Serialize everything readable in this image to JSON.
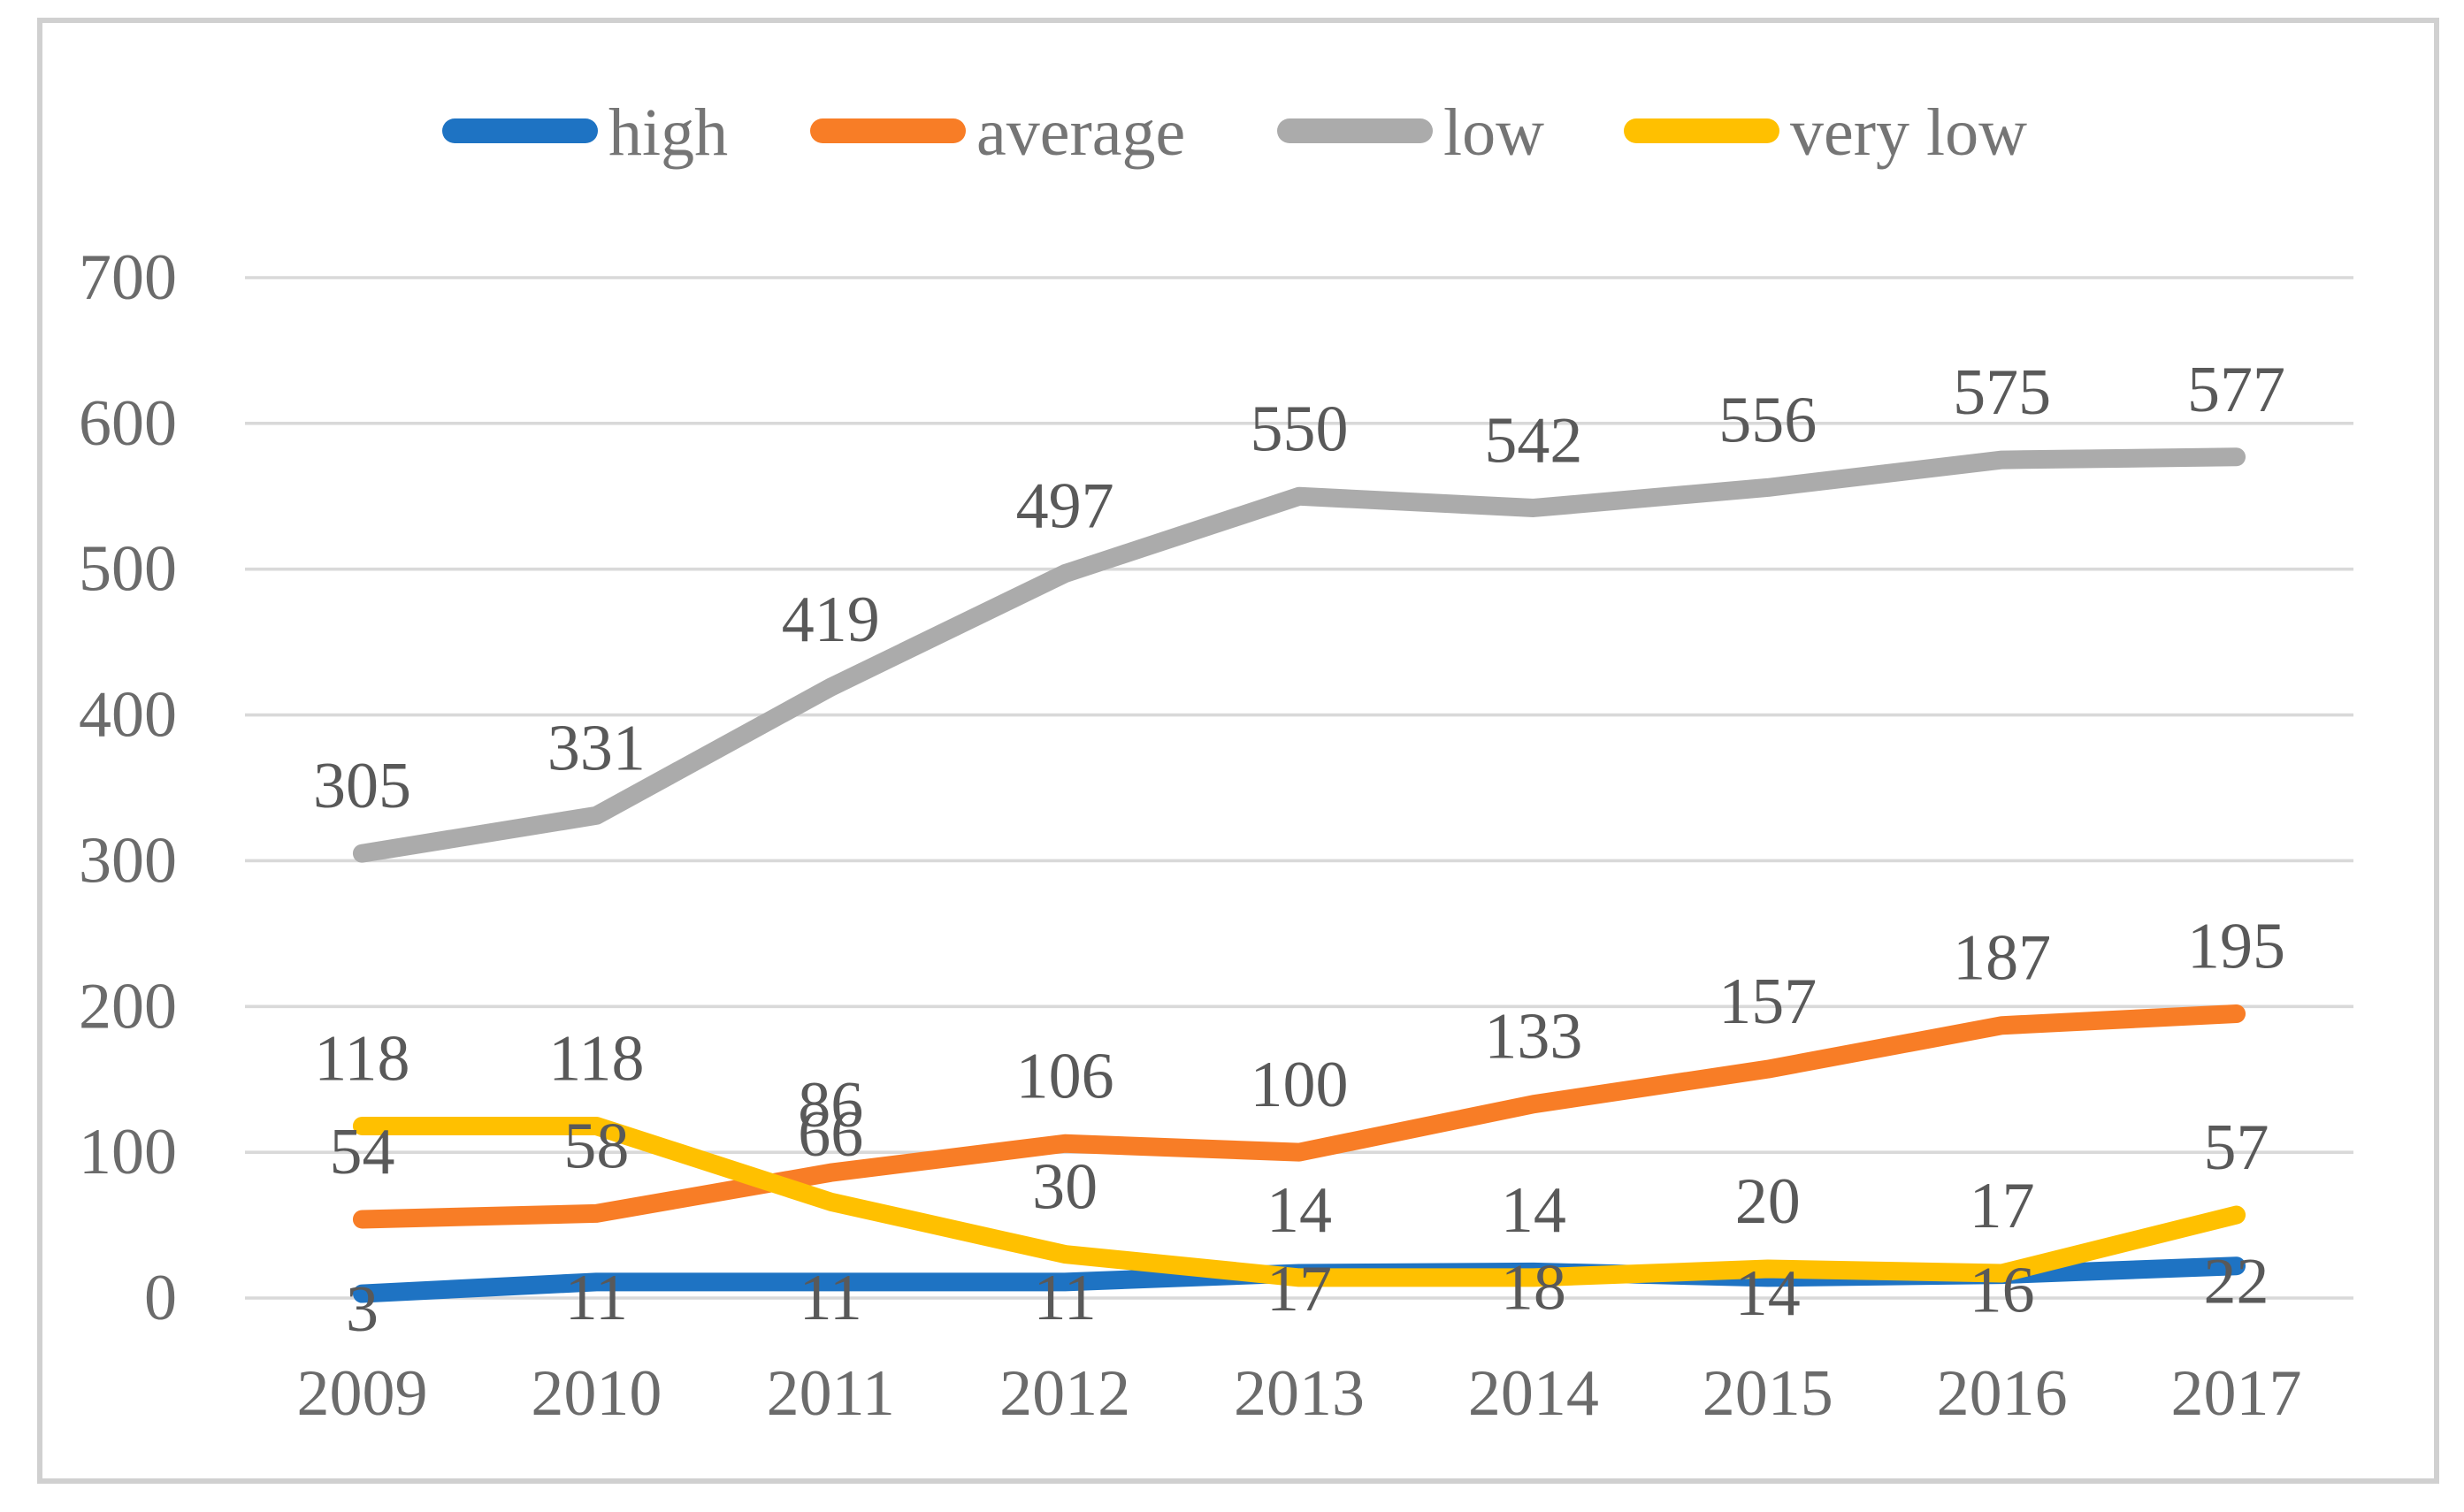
{
  "figure": {
    "background": "#FFFFFF",
    "border_color": "#D0D0D0",
    "gridline_color": "#D9D9D9",
    "axis_label_color": "#6B6B6B",
    "data_label_color": "#595959",
    "legend_label_color": "#757575"
  },
  "chart_data": {
    "type": "line",
    "title": "",
    "xlabel": "",
    "ylabel": "",
    "categories": [
      "2009",
      "2010",
      "2011",
      "2012",
      "2013",
      "2014",
      "2015",
      "2016",
      "2017"
    ],
    "series": [
      {
        "name": "high",
        "color": "#1E73C3",
        "label_position": "below",
        "values": [
          3,
          11,
          11,
          11,
          17,
          18,
          14,
          16,
          22
        ]
      },
      {
        "name": "average",
        "color": "#F87D26",
        "label_position": "above",
        "values": [
          54,
          58,
          86,
          106,
          100,
          133,
          157,
          187,
          195
        ]
      },
      {
        "name": "low",
        "color": "#ABABAB",
        "label_position": "above",
        "values": [
          305,
          331,
          419,
          497,
          550,
          542,
          556,
          575,
          577
        ]
      },
      {
        "name": "very low",
        "color": "#FFC000",
        "label_position": "above",
        "values": [
          118,
          118,
          66,
          30,
          14,
          14,
          20,
          17,
          57
        ]
      }
    ],
    "yticks": [
      0,
      100,
      200,
      300,
      400,
      500,
      600,
      700
    ],
    "ylim": [
      0,
      700
    ],
    "grid": true,
    "legend_position": "top",
    "data_labels": true
  }
}
